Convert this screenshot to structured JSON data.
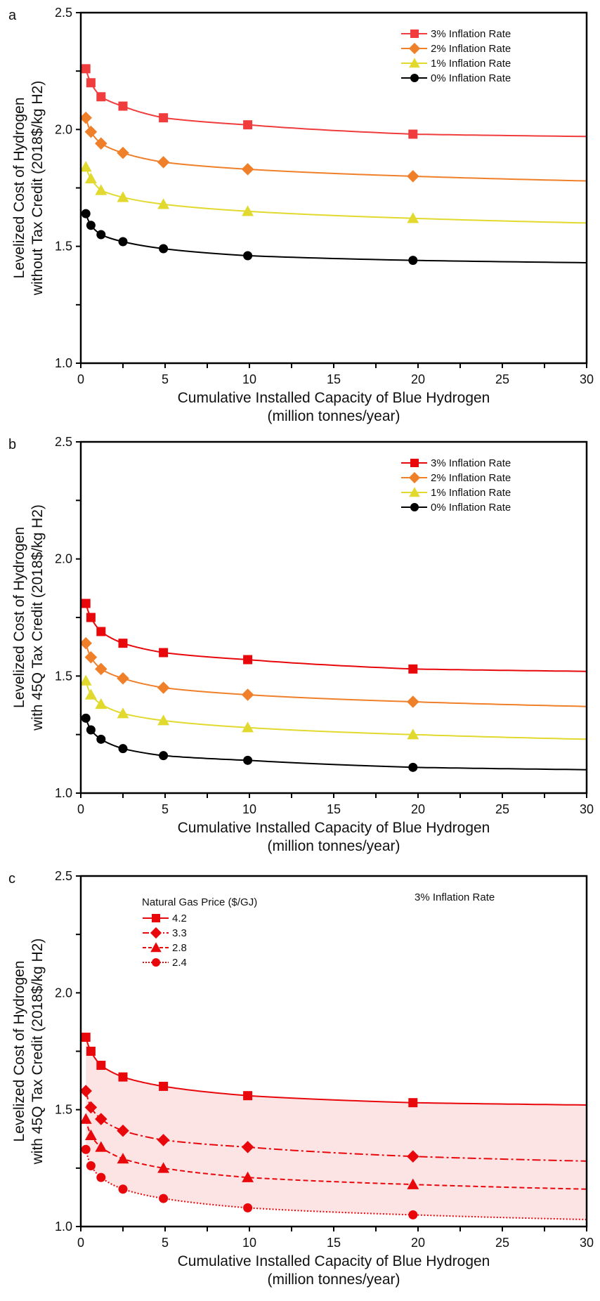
{
  "chart_data": [
    {
      "type": "line",
      "panel": "a",
      "title": "",
      "xlabel": [
        "Cumulative Installed Capacity of Blue Hydrogen",
        "(million tonnes/year)"
      ],
      "ylabel": [
        "Levelized Cost of Hydrogen",
        "without Tax Credit (2018$/kg H2)"
      ],
      "xlim": [
        0,
        30
      ],
      "ylim": [
        1.0,
        2.5
      ],
      "xticks": [
        "0",
        "5",
        "10",
        "15",
        "20",
        "25",
        "30"
      ],
      "yticks": [
        "1.0",
        "1.5",
        "2.0",
        "2.5"
      ],
      "grid": false,
      "legend_position": "top-right",
      "legend_title": "",
      "annotation": "",
      "x": [
        0.3,
        0.6,
        1.2,
        2.5,
        4.9,
        9.9,
        19.7
      ],
      "series": [
        {
          "name": "3% Inflation Rate",
          "marker": "square",
          "color": "#f03c3c",
          "dash": "solid",
          "values": [
            2.26,
            2.2,
            2.14,
            2.1,
            2.05,
            2.02,
            1.98
          ],
          "end_value": 1.97
        },
        {
          "name": "2% Inflation Rate",
          "marker": "diamond",
          "color": "#f07f2a",
          "dash": "solid",
          "values": [
            2.05,
            1.99,
            1.94,
            1.9,
            1.86,
            1.83,
            1.8
          ],
          "end_value": 1.78
        },
        {
          "name": "1% Inflation Rate",
          "marker": "triangle",
          "color": "#e2d92e",
          "dash": "solid",
          "values": [
            1.84,
            1.79,
            1.74,
            1.71,
            1.68,
            1.65,
            1.62
          ],
          "end_value": 1.6
        },
        {
          "name": "0% Inflation Rate",
          "marker": "circle",
          "color": "#000000",
          "dash": "solid",
          "values": [
            1.64,
            1.59,
            1.55,
            1.52,
            1.49,
            1.46,
            1.44
          ],
          "end_value": 1.43
        }
      ]
    },
    {
      "type": "line",
      "panel": "b",
      "title": "",
      "xlabel": [
        "Cumulative Installed Capacity of Blue Hydrogen",
        "(million tonnes/year)"
      ],
      "ylabel": [
        "Levelized Cost of Hydrogen",
        "with 45Q Tax Credit (2018$/kg H2)"
      ],
      "xlim": [
        0,
        30
      ],
      "ylim": [
        1.0,
        2.5
      ],
      "xticks": [
        "0",
        "5",
        "10",
        "15",
        "20",
        "25",
        "30"
      ],
      "yticks": [
        "1.0",
        "1.5",
        "2.0",
        "2.5"
      ],
      "grid": false,
      "legend_position": "top-right",
      "legend_title": "",
      "annotation": "",
      "x": [
        0.3,
        0.6,
        1.2,
        2.5,
        4.9,
        9.9,
        19.7
      ],
      "series": [
        {
          "name": "3% Inflation Rate",
          "marker": "square",
          "color": "#e8070b",
          "dash": "solid",
          "values": [
            1.81,
            1.75,
            1.69,
            1.64,
            1.6,
            1.57,
            1.53
          ],
          "end_value": 1.52
        },
        {
          "name": "2% Inflation Rate",
          "marker": "diamond",
          "color": "#f07f2a",
          "dash": "solid",
          "values": [
            1.64,
            1.58,
            1.53,
            1.49,
            1.45,
            1.42,
            1.39
          ],
          "end_value": 1.37
        },
        {
          "name": "1% Inflation Rate",
          "marker": "triangle",
          "color": "#e2d92e",
          "dash": "solid",
          "values": [
            1.48,
            1.42,
            1.38,
            1.34,
            1.31,
            1.28,
            1.25
          ],
          "end_value": 1.23
        },
        {
          "name": "0% Inflation Rate",
          "marker": "circle",
          "color": "#000000",
          "dash": "solid",
          "values": [
            1.32,
            1.27,
            1.23,
            1.19,
            1.16,
            1.14,
            1.11
          ],
          "end_value": 1.1
        }
      ]
    },
    {
      "type": "line",
      "panel": "c",
      "title": "",
      "xlabel": [
        "Cumulative Installed Capacity of Blue Hydrogen",
        "(million tonnes/year)"
      ],
      "ylabel": [
        "Levelized Cost of Hydrogen",
        "with 45Q Tax Credit (2018$/kg H2)"
      ],
      "xlim": [
        0,
        30
      ],
      "ylim": [
        1.0,
        2.5
      ],
      "xticks": [
        "0",
        "5",
        "10",
        "15",
        "20",
        "25",
        "30"
      ],
      "yticks": [
        "1.0",
        "1.5",
        "2.0",
        "2.5"
      ],
      "grid": false,
      "legend_position": "top-left",
      "legend_title": "Natural Gas Price ($/GJ)",
      "annotation": "3% Inflation Rate",
      "shaded_band": {
        "between": [
          "4.2",
          "2.4"
        ],
        "color": "#fde4e4"
      },
      "x": [
        0.3,
        0.6,
        1.2,
        2.5,
        4.9,
        9.9,
        19.7
      ],
      "series": [
        {
          "name": "4.2",
          "marker": "square",
          "color": "#e8070b",
          "dash": "solid",
          "values": [
            1.81,
            1.75,
            1.69,
            1.64,
            1.6,
            1.56,
            1.53
          ],
          "end_value": 1.52
        },
        {
          "name": "3.3",
          "marker": "diamond",
          "color": "#e8070b",
          "dash": "dashdot",
          "values": [
            1.58,
            1.51,
            1.46,
            1.41,
            1.37,
            1.34,
            1.3
          ],
          "end_value": 1.28
        },
        {
          "name": "2.8",
          "marker": "triangle",
          "color": "#e8070b",
          "dash": "dashed",
          "values": [
            1.46,
            1.39,
            1.34,
            1.29,
            1.25,
            1.21,
            1.18
          ],
          "end_value": 1.16
        },
        {
          "name": "2.4",
          "marker": "circle",
          "color": "#e8070b",
          "dash": "dotted",
          "values": [
            1.33,
            1.26,
            1.21,
            1.16,
            1.12,
            1.08,
            1.05
          ],
          "end_value": 1.03
        }
      ]
    }
  ]
}
